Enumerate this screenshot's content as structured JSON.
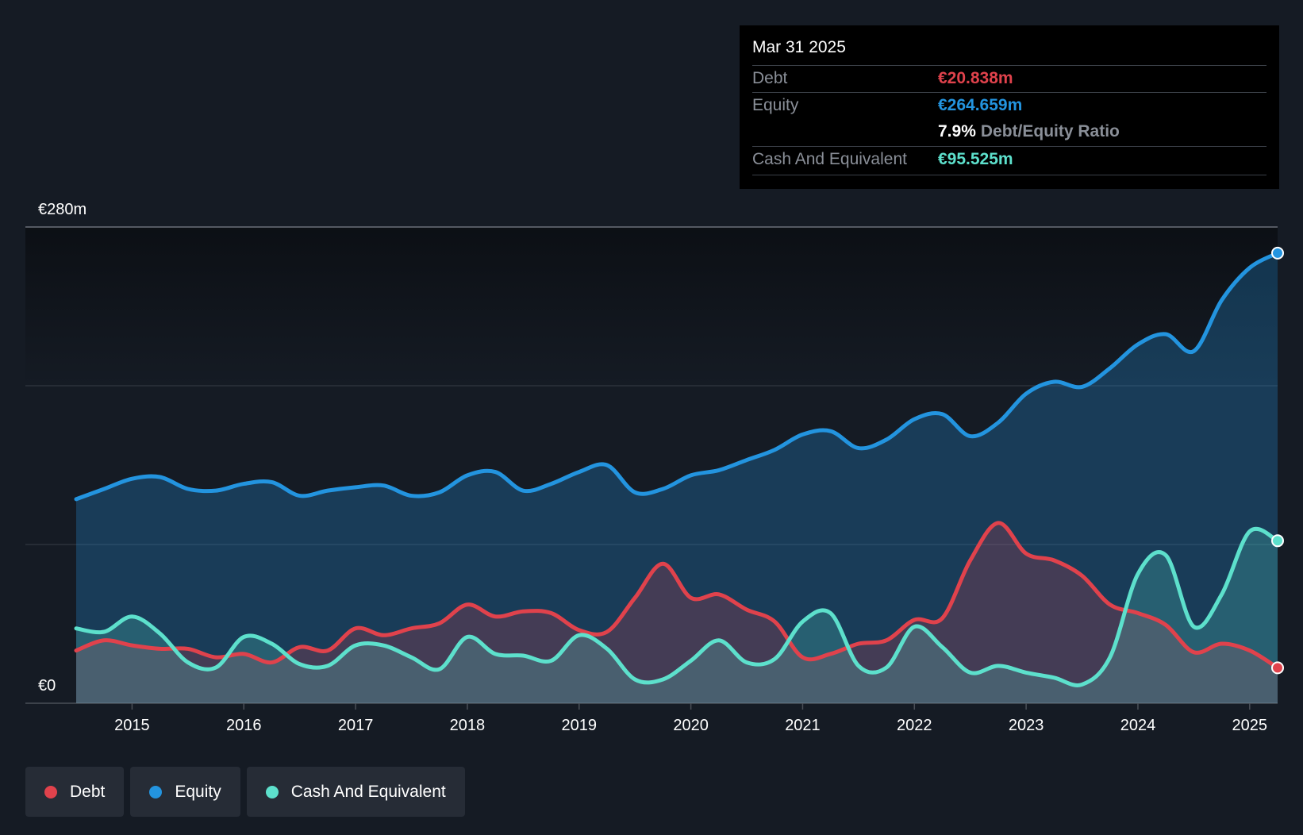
{
  "chart_data": {
    "type": "area",
    "title": "",
    "y_axis_labels": {
      "top": "€280m",
      "bottom": "€0"
    },
    "ylim": [
      0,
      280
    ],
    "xlim": [
      2014.5,
      2025.25
    ],
    "x_ticks": [
      "2015",
      "2016",
      "2017",
      "2018",
      "2019",
      "2020",
      "2021",
      "2022",
      "2023",
      "2024",
      "2025"
    ],
    "x_tick_values": [
      2015,
      2016,
      2017,
      2018,
      2019,
      2020,
      2021,
      2022,
      2023,
      2024,
      2025
    ],
    "grid": "horizontal",
    "series": [
      {
        "name": "Equity",
        "color": "#2394df",
        "points": [
          [
            2014.5,
            120
          ],
          [
            2014.75,
            126
          ],
          [
            2015.0,
            132
          ],
          [
            2015.25,
            133
          ],
          [
            2015.5,
            126
          ],
          [
            2015.75,
            125
          ],
          [
            2016.0,
            129
          ],
          [
            2016.25,
            130
          ],
          [
            2016.5,
            122
          ],
          [
            2016.75,
            125
          ],
          [
            2017.0,
            127
          ],
          [
            2017.25,
            128
          ],
          [
            2017.5,
            122
          ],
          [
            2017.75,
            124
          ],
          [
            2018.0,
            134
          ],
          [
            2018.25,
            136
          ],
          [
            2018.5,
            125
          ],
          [
            2018.75,
            129
          ],
          [
            2019.0,
            136
          ],
          [
            2019.25,
            140
          ],
          [
            2019.5,
            124
          ],
          [
            2019.75,
            126
          ],
          [
            2020.0,
            134
          ],
          [
            2020.25,
            137
          ],
          [
            2020.5,
            143
          ],
          [
            2020.75,
            149
          ],
          [
            2021.0,
            158
          ],
          [
            2021.25,
            160
          ],
          [
            2021.5,
            150
          ],
          [
            2021.75,
            155
          ],
          [
            2022.0,
            167
          ],
          [
            2022.25,
            170
          ],
          [
            2022.5,
            157
          ],
          [
            2022.75,
            165
          ],
          [
            2023.0,
            182
          ],
          [
            2023.25,
            189
          ],
          [
            2023.5,
            186
          ],
          [
            2023.75,
            197
          ],
          [
            2024.0,
            211
          ],
          [
            2024.25,
            217
          ],
          [
            2024.5,
            207
          ],
          [
            2024.75,
            237
          ],
          [
            2025.0,
            256
          ],
          [
            2025.25,
            264.659
          ]
        ]
      },
      {
        "name": "Debt",
        "color": "#e0424c",
        "points": [
          [
            2014.5,
            31
          ],
          [
            2014.75,
            37
          ],
          [
            2015.0,
            34
          ],
          [
            2015.25,
            32
          ],
          [
            2015.5,
            32
          ],
          [
            2015.75,
            27
          ],
          [
            2016.0,
            29
          ],
          [
            2016.25,
            24
          ],
          [
            2016.5,
            33
          ],
          [
            2016.75,
            31
          ],
          [
            2017.0,
            44
          ],
          [
            2017.25,
            40
          ],
          [
            2017.5,
            44
          ],
          [
            2017.75,
            47
          ],
          [
            2018.0,
            58
          ],
          [
            2018.25,
            51
          ],
          [
            2018.5,
            54
          ],
          [
            2018.75,
            53
          ],
          [
            2019.0,
            43
          ],
          [
            2019.25,
            42
          ],
          [
            2019.5,
            62
          ],
          [
            2019.75,
            82
          ],
          [
            2020.0,
            62
          ],
          [
            2020.25,
            64
          ],
          [
            2020.5,
            55
          ],
          [
            2020.75,
            48
          ],
          [
            2021.0,
            27
          ],
          [
            2021.25,
            29
          ],
          [
            2021.5,
            35
          ],
          [
            2021.75,
            37
          ],
          [
            2022.0,
            49
          ],
          [
            2022.25,
            50
          ],
          [
            2022.5,
            84
          ],
          [
            2022.75,
            106
          ],
          [
            2023.0,
            88
          ],
          [
            2023.25,
            84
          ],
          [
            2023.5,
            75
          ],
          [
            2023.75,
            58
          ],
          [
            2024.0,
            53
          ],
          [
            2024.25,
            46
          ],
          [
            2024.5,
            30
          ],
          [
            2024.75,
            35
          ],
          [
            2025.0,
            31
          ],
          [
            2025.25,
            20.838
          ]
        ]
      },
      {
        "name": "Cash And Equivalent",
        "color": "#5de0cc",
        "points": [
          [
            2014.5,
            44
          ],
          [
            2014.75,
            42
          ],
          [
            2015.0,
            51
          ],
          [
            2015.25,
            41
          ],
          [
            2015.5,
            24
          ],
          [
            2015.75,
            21
          ],
          [
            2016.0,
            39
          ],
          [
            2016.25,
            35
          ],
          [
            2016.5,
            23
          ],
          [
            2016.75,
            22
          ],
          [
            2017.0,
            34
          ],
          [
            2017.25,
            34
          ],
          [
            2017.5,
            27
          ],
          [
            2017.75,
            20
          ],
          [
            2018.0,
            39
          ],
          [
            2018.25,
            29
          ],
          [
            2018.5,
            28
          ],
          [
            2018.75,
            25
          ],
          [
            2019.0,
            40
          ],
          [
            2019.25,
            32
          ],
          [
            2019.5,
            14
          ],
          [
            2019.75,
            14
          ],
          [
            2020.0,
            25
          ],
          [
            2020.25,
            37
          ],
          [
            2020.5,
            24
          ],
          [
            2020.75,
            26
          ],
          [
            2021.0,
            48
          ],
          [
            2021.25,
            53
          ],
          [
            2021.5,
            22
          ],
          [
            2021.75,
            21
          ],
          [
            2022.0,
            45
          ],
          [
            2022.25,
            33
          ],
          [
            2022.5,
            18
          ],
          [
            2022.75,
            22
          ],
          [
            2023.0,
            18
          ],
          [
            2023.25,
            15
          ],
          [
            2023.5,
            11
          ],
          [
            2023.75,
            27
          ],
          [
            2024.0,
            76
          ],
          [
            2024.25,
            87
          ],
          [
            2024.5,
            45
          ],
          [
            2024.75,
            64
          ],
          [
            2025.0,
            101
          ],
          [
            2025.25,
            95.525
          ]
        ]
      }
    ]
  },
  "tooltip": {
    "date": "Mar 31 2025",
    "debt_label": "Debt",
    "debt_value": "€20.838m",
    "equity_label": "Equity",
    "equity_value": "€264.659m",
    "ratio_value": "7.9%",
    "ratio_label": "Debt/Equity Ratio",
    "cash_label": "Cash And Equivalent",
    "cash_value": "€95.525m"
  },
  "legend": {
    "debt": "Debt",
    "equity": "Equity",
    "cash": "Cash And Equivalent"
  },
  "colors": {
    "debt": "#e0424c",
    "equity": "#2394df",
    "cash": "#5de0cc",
    "background": "#151b24"
  }
}
